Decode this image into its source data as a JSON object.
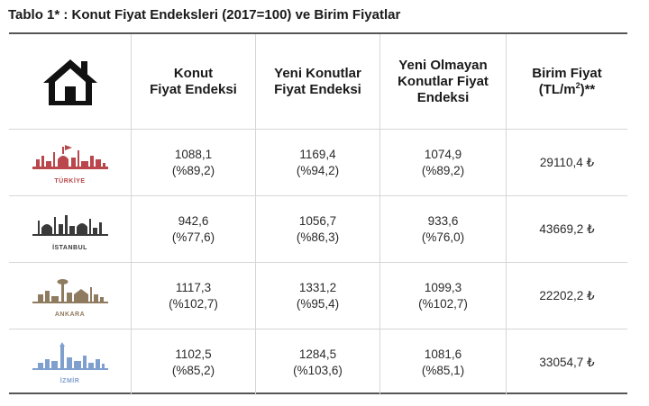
{
  "title": "Tablo 1* : Konut Fiyat Endeksleri (2017=100) ve Birim Fiyatlar",
  "header": {
    "icon": "house-icon",
    "col1": [
      "Konut",
      "Fiyat Endeksi"
    ],
    "col2": [
      "Yeni Konutlar",
      "Fiyat Endeksi"
    ],
    "col3": [
      "Yeni Olmayan",
      "Konutlar Fiyat",
      "Endeksi"
    ],
    "col4_line1": "Birim Fiyat",
    "col4_line2_pre": "(TL/m",
    "col4_sup": "2",
    "col4_line2_post": ")**"
  },
  "rows": [
    {
      "city": "TÜRKİYE",
      "color": "#b9474b",
      "icon": "turkiye-skyline-icon",
      "v1": "1088,1",
      "p1": "(%89,2)",
      "v2": "1169,4",
      "p2": "(%94,2)",
      "v3": "1074,9",
      "p3": "(%89,2)",
      "price": "29110,4 ₺"
    },
    {
      "city": "İSTANBUL",
      "color": "#3a3a3a",
      "icon": "istanbul-skyline-icon",
      "v1": "942,6",
      "p1": "(%77,6)",
      "v2": "1056,7",
      "p2": "(%86,3)",
      "v3": "933,6",
      "p3": "(%76,0)",
      "price": "43669,2 ₺"
    },
    {
      "city": "ANKARA",
      "color": "#8f7b5f",
      "icon": "ankara-skyline-icon",
      "v1": "1117,3",
      "p1": "(%102,7)",
      "v2": "1331,2",
      "p2": "(%95,4)",
      "v3": "1099,3",
      "p3": "(%102,7)",
      "price": "22202,2 ₺"
    },
    {
      "city": "İZMİR",
      "color": "#7f9fcf",
      "icon": "izmir-skyline-icon",
      "v1": "1102,5",
      "p1": "(%85,2)",
      "v2": "1284,5",
      "p2": "(%103,6)",
      "v3": "1081,6",
      "p3": "(%85,1)",
      "price": "33054,7 ₺"
    }
  ]
}
